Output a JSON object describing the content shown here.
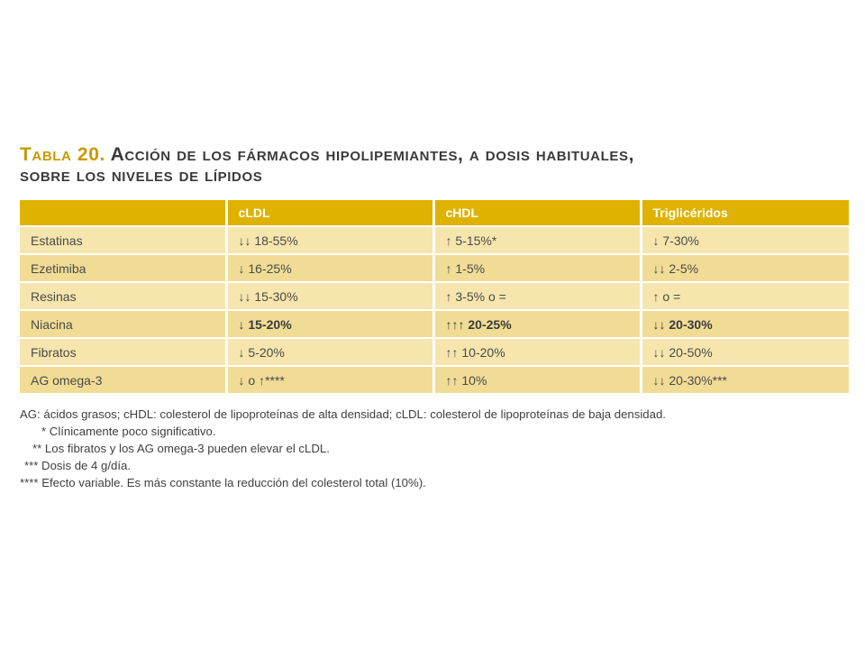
{
  "title": {
    "label": "Tabla 20.",
    "line1": "Acción de los fármacos hipolipemiantes, a dosis habituales,",
    "line2": "sobre los niveles de lípidos"
  },
  "table": {
    "headers": [
      "",
      "cLDL",
      "cHDL",
      "Triglicéridos"
    ],
    "rows": [
      {
        "drug": "Estatinas",
        "cldl": "↓↓ 18-55%",
        "chdl": "↑ 5-15%*",
        "tg": "↓ 7-30%"
      },
      {
        "drug": "Ezetimiba",
        "cldl": "↓ 16-25%",
        "chdl": "↑ 1-5%",
        "tg": "↓↓ 2-5%"
      },
      {
        "drug": "Resinas",
        "cldl": "↓↓ 15-30%",
        "chdl": "↑ 3-5% o =",
        "tg": "↑ o ="
      },
      {
        "drug": "Niacina",
        "cldl": "↓ 15-20%",
        "chdl": "↑↑↑ 20-25%",
        "tg": "↓↓ 20-30%"
      },
      {
        "drug": "Fibratos",
        "cldl": "↓ 5-20%",
        "chdl": "↑↑ 10-20%",
        "tg": "↓↓ 20-50%"
      },
      {
        "drug": "AG omega-3",
        "cldl": "↓ o ↑****",
        "chdl": "↑↑ 10%",
        "tg": "↓↓ 20-30%***"
      }
    ]
  },
  "notes": {
    "abbrev": "AG: ácidos grasos; cHDL: colesterol de lipoproteínas de alta densidad; cLDL: colesterol de lipoproteínas de baja densidad.",
    "n1": "* Clínicamente poco significativo.",
    "n2": "** Los fibratos y los AG omega-3 pueden elevar el cLDL.",
    "n3": "*** Dosis de 4 g/día.",
    "n4": "**** Efecto variable. Es más constante la reducción del colesterol total (10%)."
  },
  "colors": {
    "header_bg": "#dfb200",
    "row_light": "#f6e6ad",
    "row_dark": "#f1dc95",
    "title_label": "#c79a00"
  }
}
